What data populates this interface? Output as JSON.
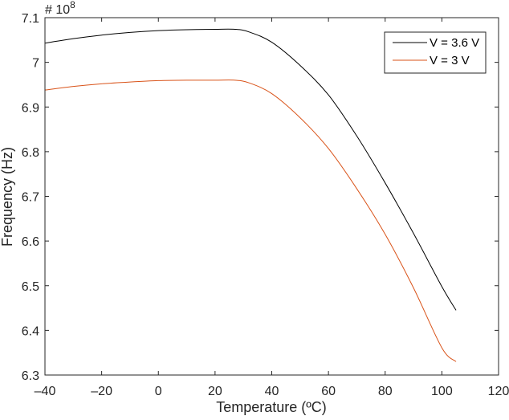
{
  "chart_data": {
    "type": "line",
    "title": "",
    "xlabel": "Temperature (ºC)",
    "ylabel": "Frequency (Hz)",
    "y_exponent_label": "# 10",
    "y_exponent": "8",
    "xlim": [
      -40,
      120
    ],
    "ylim": [
      6.3,
      7.1
    ],
    "xticks": [
      -40,
      -20,
      0,
      20,
      40,
      60,
      80,
      100,
      120
    ],
    "xtick_labels": [
      "–40",
      "–20",
      "0",
      "20",
      "40",
      "60",
      "80",
      "100",
      "120"
    ],
    "yticks": [
      6.3,
      6.4,
      6.5,
      6.6,
      6.7,
      6.8,
      6.9,
      7.0,
      7.1
    ],
    "ytick_labels": [
      "6.3",
      "6.4",
      "6.5",
      "6.6",
      "6.7",
      "6.8",
      "6.9",
      "7",
      "7.1"
    ],
    "grid": false,
    "legend_position": "upper right",
    "series": [
      {
        "name": "V = 3.6 V",
        "color": "#000000",
        "x": [
          -40,
          -30,
          -20,
          -10,
          0,
          10,
          20,
          27,
          32,
          40,
          50,
          60,
          70,
          80,
          90,
          100,
          105
        ],
        "values": [
          7.043,
          7.053,
          7.061,
          7.067,
          7.071,
          7.073,
          7.074,
          7.074,
          7.068,
          7.045,
          6.993,
          6.927,
          6.835,
          6.73,
          6.617,
          6.498,
          6.445
        ]
      },
      {
        "name": "V = 3 V",
        "color": "#D95319",
        "x": [
          -40,
          -30,
          -20,
          -10,
          0,
          10,
          20,
          27,
          32,
          40,
          50,
          60,
          70,
          80,
          90,
          100,
          105
        ],
        "values": [
          6.938,
          6.946,
          6.952,
          6.956,
          6.959,
          6.96,
          6.96,
          6.96,
          6.954,
          6.93,
          6.876,
          6.807,
          6.717,
          6.615,
          6.495,
          6.361,
          6.33
        ]
      }
    ]
  }
}
